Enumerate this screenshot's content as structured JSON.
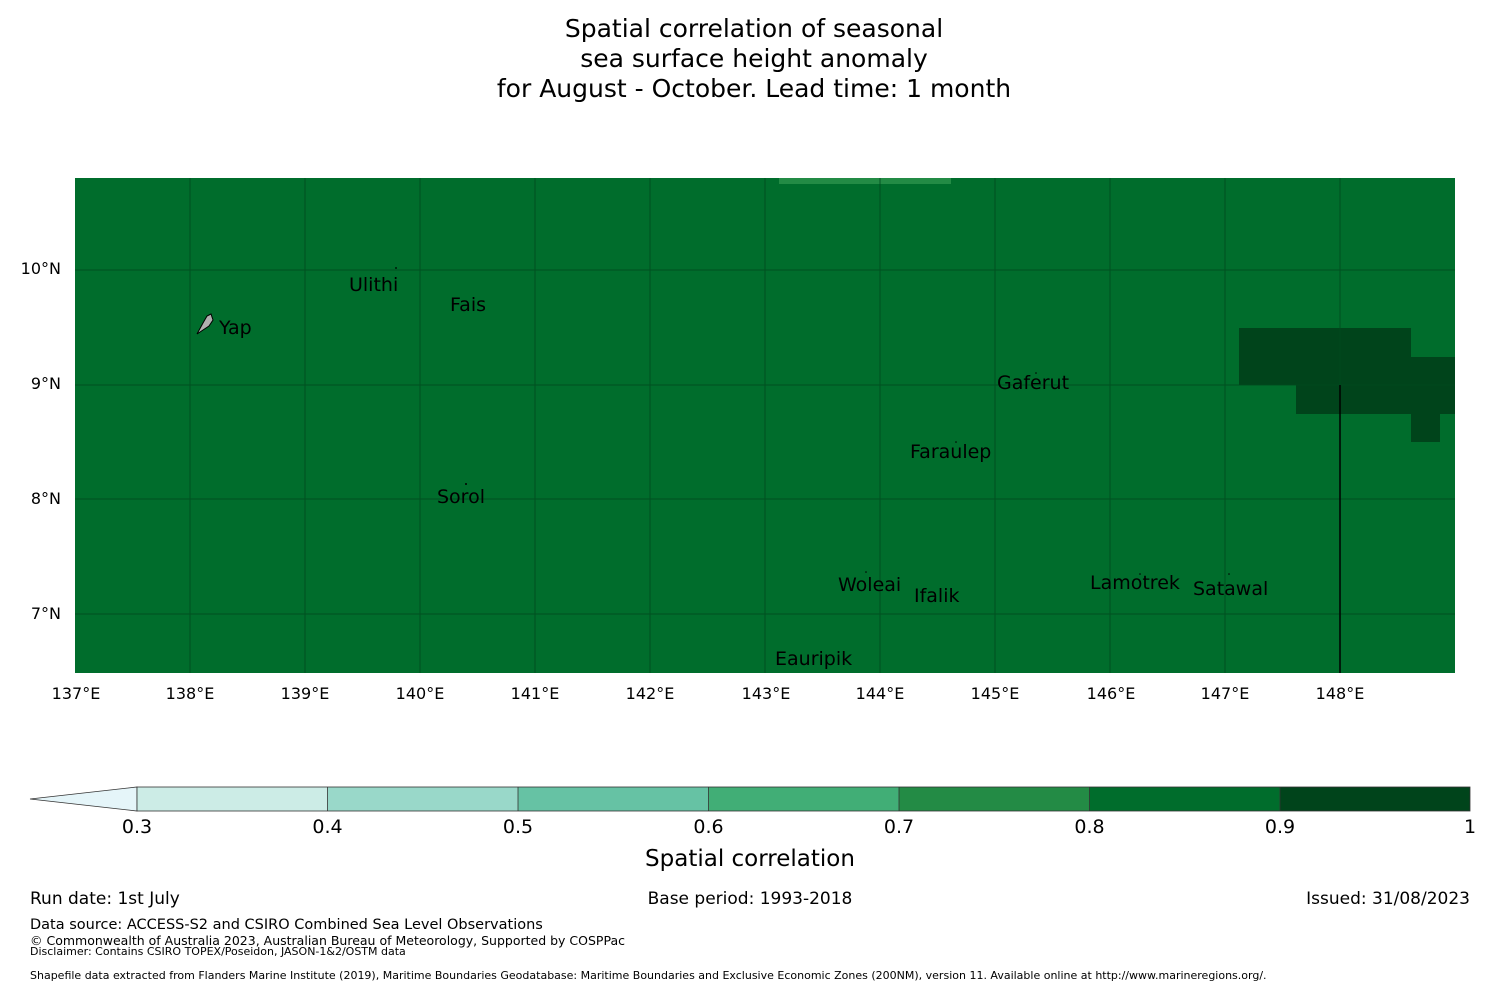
{
  "title": {
    "line1": "Spatial correlation of seasonal",
    "line2": "sea surface height anomaly",
    "line3": "for August - October. Lead time: 1 month"
  },
  "map": {
    "base_fill_color": "#006d2c",
    "high_fill_color": "#00441b",
    "mid_fill_color": "#238b45",
    "lat_labels": [
      "10°N",
      "9°N",
      "8°N",
      "7°N"
    ],
    "lon_labels": [
      "137°E",
      "138°E",
      "139°E",
      "140°E",
      "141°E",
      "142°E",
      "143°E",
      "144°E",
      "145°E",
      "146°E",
      "147°E",
      "148°E"
    ],
    "islands": [
      "Yap",
      "Ulithi",
      "Fais",
      "Sorol",
      "Gaferut",
      "Faraulep",
      "Woleai",
      "Ifalik",
      "Eauripik",
      "Lamotrek",
      "Satawal"
    ]
  },
  "colorbar": {
    "ticks": [
      "0.3",
      "0.4",
      "0.5",
      "0.6",
      "0.7",
      "0.8",
      "0.9",
      "1"
    ],
    "colors": [
      "#e5f5f9",
      "#ccece6",
      "#99d8c9",
      "#66c2a4",
      "#41ae76",
      "#238b45",
      "#006d2c",
      "#00441b"
    ],
    "label": "Spatial correlation"
  },
  "footer": {
    "run_date": "Run date: 1st July",
    "base_period": "Base period: 1993-2018",
    "issued": "Issued: 31/08/2023",
    "data_source": "Data source: ACCESS-S2 and CSIRO Combined Sea Level Observations",
    "copyright": "© Commonwealth of Australia 2023, Australian Bureau of Meteorology, Supported by COSPPac",
    "disclaimer": "Disclaimer: Contains CSIRO TOPEX/Poseidon, JASON-1&2/OSTM data",
    "shapefile": "Shapefile data extracted from Flanders Marine Institute (2019), Maritime Boundaries Geodatabase: Maritime Boundaries and Exclusive Economic Zones (200NM), version 11. Available online at http://www.marineregions.org/."
  }
}
